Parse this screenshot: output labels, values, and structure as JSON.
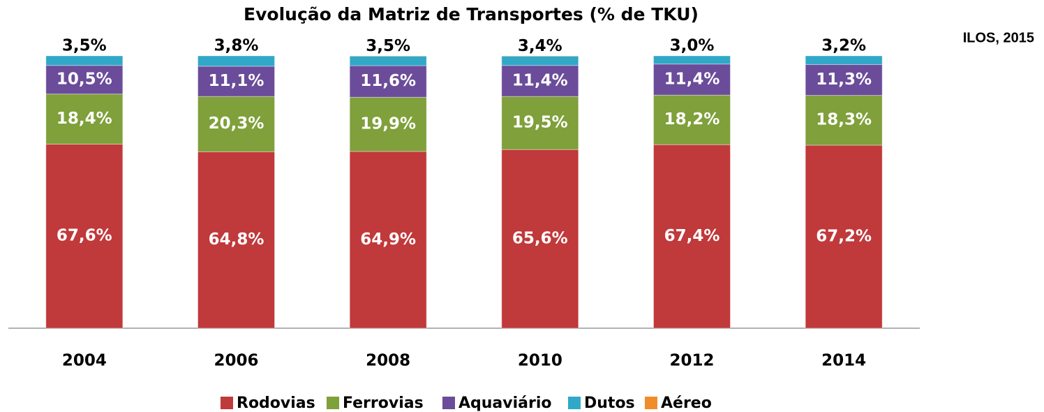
{
  "chart_data": {
    "type": "stacked_bar",
    "title": "Evolução da Matriz de Transportes (% de TKU)",
    "source": "ILOS, 2015",
    "categories": [
      "2004",
      "2006",
      "2008",
      "2010",
      "2012",
      "2014"
    ],
    "ylim": [
      0,
      100
    ],
    "legend": "bottom",
    "series": [
      {
        "name": "Rodovias",
        "color": "#c0393b",
        "values": [
          67.6,
          64.8,
          64.9,
          65.6,
          67.4,
          67.2
        ],
        "value_labels": [
          "67,6%",
          "64,8%",
          "64,9%",
          "65,6%",
          "67,4%",
          "67,2%"
        ]
      },
      {
        "name": "Ferrovias",
        "color": "#7fa03a",
        "values": [
          18.4,
          20.3,
          19.9,
          19.5,
          18.2,
          18.3
        ],
        "value_labels": [
          "18,4%",
          "20,3%",
          "19,9%",
          "19,5%",
          "18,2%",
          "18,3%"
        ]
      },
      {
        "name": "Aquaviário",
        "color": "#6b4c9a",
        "values": [
          10.5,
          11.1,
          11.6,
          11.4,
          11.4,
          11.3
        ],
        "value_labels": [
          "10,5%",
          "11,1%",
          "11,6%",
          "11,4%",
          "11,4%",
          "11,3%"
        ]
      },
      {
        "name": "Dutos",
        "color": "#31a8c8",
        "values": [
          3.5,
          3.8,
          3.5,
          3.4,
          3.0,
          3.2
        ],
        "value_labels": [
          "3,5%",
          "3,8%",
          "3,5%",
          "3,4%",
          "3,0%",
          "3,2%"
        ]
      },
      {
        "name": "Aéreo",
        "color": "#f08c2a",
        "values": [
          0,
          0,
          0.1,
          0.1,
          0,
          0
        ]
      }
    ]
  }
}
